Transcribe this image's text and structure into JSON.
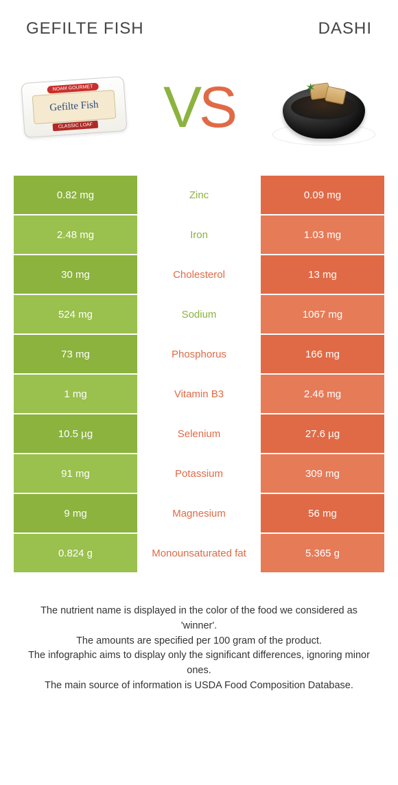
{
  "titles": {
    "left": "Gefilte fish",
    "right": "Dashi"
  },
  "package": {
    "brand": "NOAM GOURMET",
    "product": "Gefilte Fish",
    "variant": "CLASSIC LOAF"
  },
  "vs": {
    "v": "V",
    "s": "S"
  },
  "colors": {
    "left_primary": "#8bb33e",
    "left_alt": "#9ac04d",
    "right_primary": "#e06a46",
    "right_alt": "#e67b58",
    "mid_left": "#8bb33e",
    "mid_right": "#e06a46"
  },
  "rows": [
    {
      "left": "0.82 mg",
      "label": "Zinc",
      "right": "0.09 mg",
      "winner": "left"
    },
    {
      "left": "2.48 mg",
      "label": "Iron",
      "right": "1.03 mg",
      "winner": "left"
    },
    {
      "left": "30 mg",
      "label": "Cholesterol",
      "right": "13 mg",
      "winner": "right"
    },
    {
      "left": "524 mg",
      "label": "Sodium",
      "right": "1067 mg",
      "winner": "left"
    },
    {
      "left": "73 mg",
      "label": "Phosphorus",
      "right": "166 mg",
      "winner": "right"
    },
    {
      "left": "1 mg",
      "label": "Vitamin B3",
      "right": "2.46 mg",
      "winner": "right"
    },
    {
      "left": "10.5 µg",
      "label": "Selenium",
      "right": "27.6 µg",
      "winner": "right"
    },
    {
      "left": "91 mg",
      "label": "Potassium",
      "right": "309 mg",
      "winner": "right"
    },
    {
      "left": "9 mg",
      "label": "Magnesium",
      "right": "56 mg",
      "winner": "right"
    },
    {
      "left": "0.824 g",
      "label": "Monounsaturated fat",
      "right": "5.365 g",
      "winner": "right"
    }
  ],
  "footer": [
    "The nutrient name is displayed in the color of the food we considered as 'winner'.",
    "The amounts are specified per 100 gram of the product.",
    "The infographic aims to display only the significant differences, ignoring minor ones.",
    "The main source of information is USDA Food Composition Database."
  ]
}
